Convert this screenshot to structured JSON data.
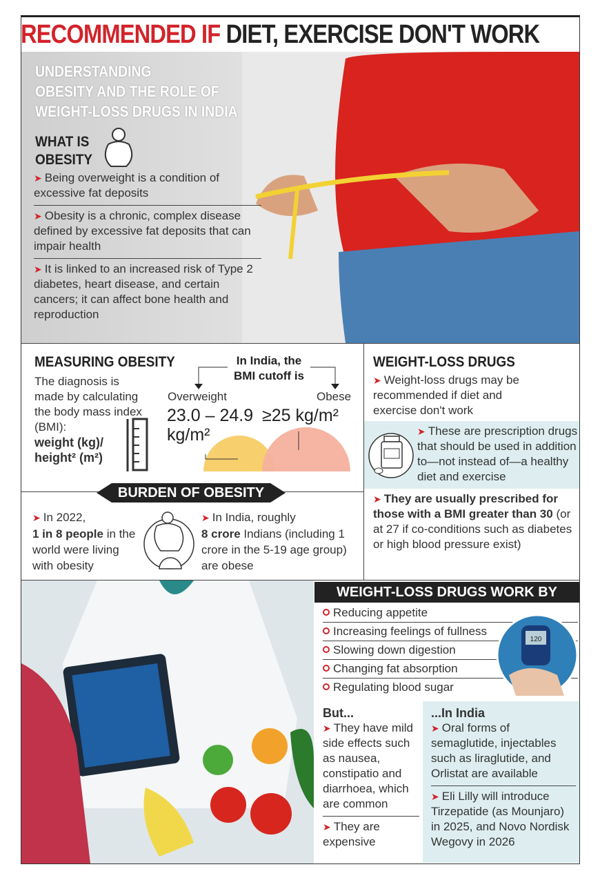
{
  "title": {
    "part1": "RECOMMENDED IF",
    "part2": " DIET, EXERCISE DON'T WORK"
  },
  "colors": {
    "accent": "#d2232a",
    "panel": "#deeef0",
    "overweight": "#f7cf6d",
    "obese": "#f5b19e"
  },
  "intro": {
    "heading": [
      "UNDERSTANDING",
      "OBESITY AND THE ROLE OF",
      "WEIGHT-LOSS DRUGS IN INDIA"
    ],
    "what_title": [
      "WHAT IS",
      "OBESITY"
    ],
    "points": [
      "Being overweight is a condition of excessive fat deposits",
      "Obesity is a chronic, complex disease defined by excessive fat deposits that can impair health",
      "It is linked to an increased risk of Type 2 diabetes, heart disease, and certain cancers; it can affect bone health and reproduction"
    ],
    "icons": [
      "obese-person-icon",
      "measuring-tape-photo"
    ]
  },
  "measuring": {
    "title": "MEASURING OBESITY",
    "text": "The diagnosis is made by calculating the body mass index (BMI):",
    "formula1": "weight (kg)/",
    "formula2": "height² (m²)",
    "cutoff_title": [
      "In India, the",
      "BMI cutoff is"
    ],
    "overweight_label": "Overweight",
    "overweight_value": "23.0 – 24.9",
    "overweight_unit": "kg/m²",
    "obese_label": "Obese",
    "obese_value": "≥25 kg/m²"
  },
  "burden": {
    "title": "BURDEN OF OBESITY",
    "left": {
      "l1": "In 2022,",
      "bold": "1 in 8 people",
      "rest": " in the world were living with obesity"
    },
    "right": {
      "l1": "In India, roughly",
      "bold": "8 crore",
      "rest": " Indians (including 1 crore in the 5-19 age group) are obese"
    }
  },
  "drugs": {
    "title": "WEIGHT-LOSS DRUGS",
    "p1": "Weight-loss drugs may be recommended if diet and exercise don't work",
    "p2": "These are prescription drugs that should be used in addition to—not instead of—a healthy diet and exercise",
    "p3_bold": "They are usually prescribed for those with a BMI greater than 30",
    "p3_rest": " (or at 27 if co-conditions such as diabetes or high blood pressure exist)"
  },
  "work_by": {
    "title": "WEIGHT-LOSS DRUGS WORK BY",
    "items": [
      "Reducing appetite",
      "Increasing feelings of fullness",
      "Slowing down digestion",
      "Changing fat absorption",
      "Regulating blood sugar"
    ],
    "meter_reading": "120"
  },
  "but": {
    "title": "But...",
    "p1": "They have mild side effects such as nausea, constipatio and diarrhoea, which are common",
    "p2": "They are expensive"
  },
  "india": {
    "title": "...In India",
    "p1": "Oral forms of semaglutide, injectables such as liraglutide, and Orlistat are available",
    "p2": "Eli Lilly will introduce Tirzepatide (as Mounjaro) in 2025, and Novo Nordisk Wegovy in 2026"
  }
}
